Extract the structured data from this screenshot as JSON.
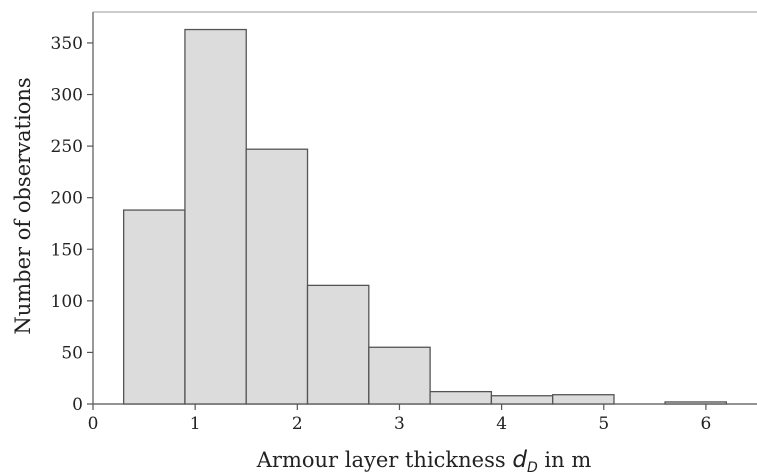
{
  "chart_data": {
    "type": "bar",
    "title": "",
    "xlabel": {
      "prefix": "Armour layer thickness ",
      "symbol": "d",
      "subscript": "D",
      "suffix": " in m"
    },
    "ylabel": "Number of observations",
    "xlim": [
      0,
      6.5
    ],
    "ylim": [
      0,
      380
    ],
    "xticks": [
      0,
      1,
      2,
      3,
      4,
      5,
      6
    ],
    "yticks": [
      0,
      50,
      100,
      150,
      200,
      250,
      300,
      350
    ],
    "bins": [
      {
        "x0": 0.3,
        "x1": 0.9,
        "value": 188
      },
      {
        "x0": 0.9,
        "x1": 1.5,
        "value": 363
      },
      {
        "x0": 1.5,
        "x1": 2.1,
        "value": 247
      },
      {
        "x0": 2.1,
        "x1": 2.7,
        "value": 115
      },
      {
        "x0": 2.7,
        "x1": 3.3,
        "value": 55
      },
      {
        "x0": 3.3,
        "x1": 3.9,
        "value": 12
      },
      {
        "x0": 3.9,
        "x1": 4.5,
        "value": 8
      },
      {
        "x0": 4.5,
        "x1": 5.1,
        "value": 9
      },
      {
        "x0": 5.1,
        "x1": 5.6,
        "value": 0
      },
      {
        "x0": 5.6,
        "x1": 6.2,
        "value": 2
      }
    ],
    "grid": false,
    "colors": {
      "bar_fill": "#dcdcdc",
      "bar_stroke": "#555555",
      "axis": "#555555"
    }
  }
}
